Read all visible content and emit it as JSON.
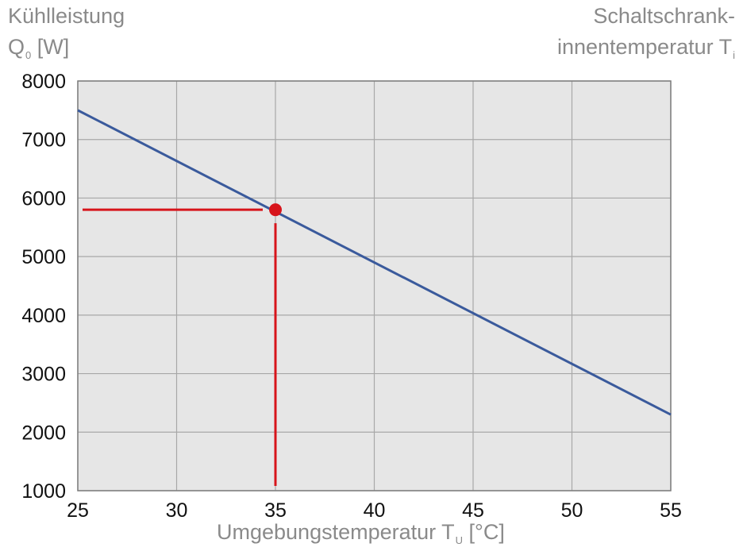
{
  "ylabel": {
    "line1": "Kühlleistung",
    "symbol": "Q",
    "sub": "0",
    "unit": " [W]"
  },
  "curve_label": {
    "line1": "Schaltschrank-",
    "line2": "innentemperatur T",
    "sub": "i"
  },
  "xlabel": {
    "text": "Umgebungstemperatur T",
    "sub": "U",
    "unit": " [°C]"
  },
  "chart_data": {
    "type": "line",
    "xlim": [
      25,
      55
    ],
    "ylim": [
      1000,
      8000
    ],
    "xticks": [
      25,
      30,
      35,
      40,
      45,
      50,
      55
    ],
    "yticks": [
      1000,
      2000,
      3000,
      4000,
      5000,
      6000,
      7000,
      8000
    ],
    "grid": true,
    "series": [
      {
        "color": "#3a5a9c",
        "x": [
          25,
          55
        ],
        "y": [
          7500,
          2300
        ]
      }
    ],
    "marker": {
      "x": 35,
      "y": 5800,
      "color": "#d7141b"
    },
    "guides": {
      "color": "#d7141b",
      "horizontal_y": 5800,
      "vertical_x": 35
    }
  }
}
